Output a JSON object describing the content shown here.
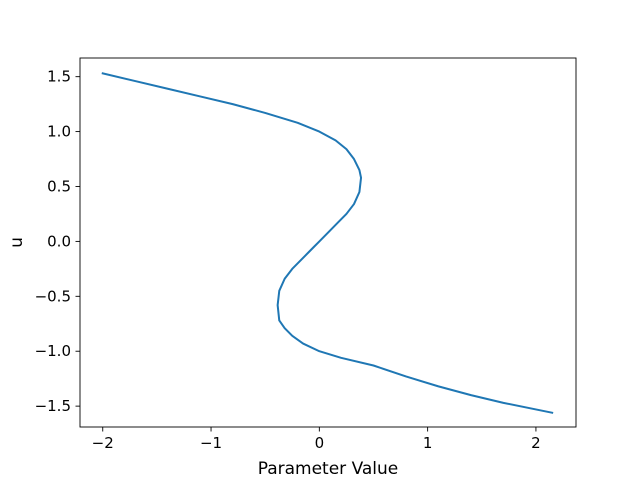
{
  "chart_data": {
    "type": "line",
    "title": "",
    "xlabel": "Parameter Value",
    "ylabel": "u",
    "xlim": [
      -2.21,
      2.37
    ],
    "ylim": [
      -1.69,
      1.67
    ],
    "xticks": [
      -2,
      -1,
      0,
      1,
      2
    ],
    "xtick_labels": [
      "−2",
      "−1",
      "0",
      "1",
      "2"
    ],
    "yticks": [
      -1.5,
      -1.0,
      -0.5,
      0.0,
      0.5,
      1.0,
      1.5
    ],
    "ytick_labels": [
      "−1.5",
      "−1.0",
      "−0.5",
      "0.0",
      "0.5",
      "1.0",
      "1.5"
    ],
    "grid": false,
    "series": [
      {
        "color": "#1f77b4",
        "x": [
          -2.0,
          -1.7,
          -1.4,
          -1.1,
          -0.8,
          -0.5,
          -0.2,
          0.0,
          0.15,
          0.25,
          0.32,
          0.37,
          0.385,
          0.37,
          0.32,
          0.25,
          0.17,
          0.1,
          0.05,
          0.0,
          -0.05,
          -0.1,
          -0.17,
          -0.25,
          -0.32,
          -0.37,
          -0.385,
          -0.37,
          -0.32,
          -0.25,
          -0.15,
          0.0,
          0.2,
          0.5,
          0.8,
          1.1,
          1.4,
          1.7,
          2.0,
          2.15
        ],
        "y": [
          1.53,
          1.46,
          1.39,
          1.32,
          1.25,
          1.17,
          1.08,
          1.0,
          0.92,
          0.84,
          0.75,
          0.65,
          0.58,
          0.45,
          0.34,
          0.25,
          0.17,
          0.1,
          0.05,
          0.0,
          -0.05,
          -0.1,
          -0.17,
          -0.25,
          -0.34,
          -0.45,
          -0.58,
          -0.72,
          -0.79,
          -0.86,
          -0.93,
          -1.0,
          -1.06,
          -1.13,
          -1.23,
          -1.32,
          -1.4,
          -1.47,
          -1.53,
          -1.56
        ]
      }
    ]
  }
}
